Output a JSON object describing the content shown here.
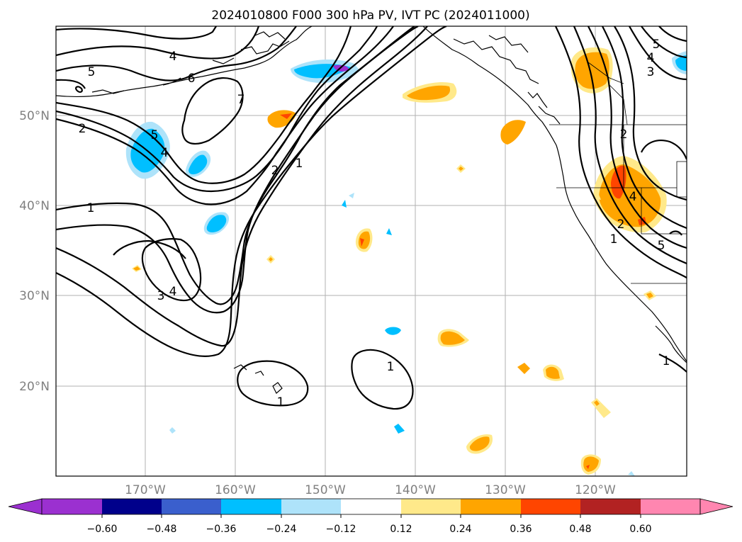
{
  "title": "2024010800 F000 300 hPa PV, IVT PC (2024011000)",
  "map": {
    "lon_labels": [
      "170°W",
      "160°W",
      "150°W",
      "140°W",
      "130°W",
      "120°W"
    ],
    "lat_labels": [
      "50°N",
      "40°N",
      "30°N",
      "20°N"
    ],
    "contour_labels": [
      "4",
      "5",
      "6",
      "7",
      "2",
      "1",
      "5",
      "4",
      "2",
      "1",
      "3",
      "4",
      "1",
      "1",
      "5",
      "4",
      "3",
      "2",
      "4",
      "2",
      "1",
      "5",
      "1"
    ],
    "shading_colors": {
      "blue": "#00bfff",
      "light_blue": "#aee3fa",
      "orange": "#ffa500",
      "yellow": "#ffe98a",
      "red_orange": "#ff4500"
    }
  },
  "colorbar": {
    "ticks": [
      "−0.60",
      "−0.48",
      "−0.36",
      "−0.24",
      "−0.12",
      "0.12",
      "0.24",
      "0.36",
      "0.48",
      "0.60"
    ],
    "colors": [
      "#9b30d0",
      "#00008b",
      "#3a5fcd",
      "#00bfff",
      "#aee3fa",
      "#ffffff",
      "#ffe98a",
      "#ffa500",
      "#ff4500",
      "#b22222",
      "#ff86b0",
      "#ff86b0"
    ]
  }
}
